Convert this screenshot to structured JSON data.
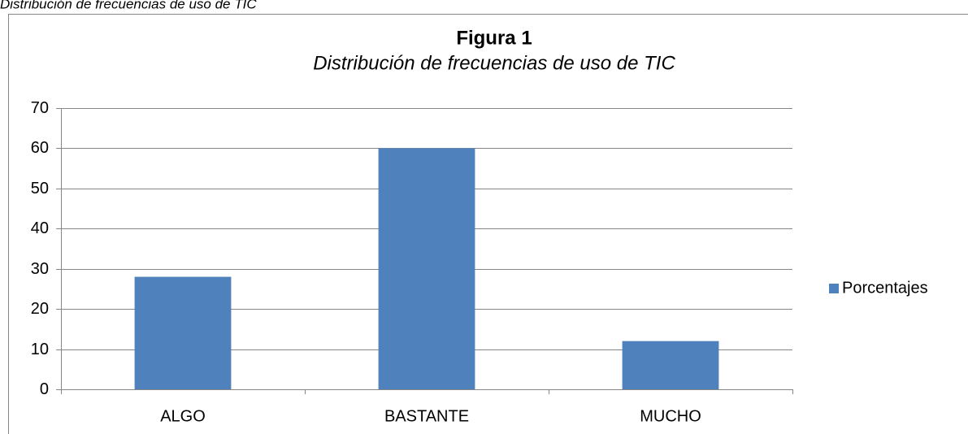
{
  "caption": "Distribución de frecuencias de uso de TIC",
  "chart_data": {
    "type": "bar",
    "title": "Figura 1",
    "subtitle": "Distribución de frecuencias de uso de TIC",
    "categories": [
      "ALGO",
      "BASTANTE",
      "MUCHO"
    ],
    "series": [
      {
        "name": "Porcentajes",
        "color": "#4f81bd",
        "values": [
          28,
          60,
          12
        ]
      }
    ],
    "ylim": [
      0,
      70
    ],
    "yticks": [
      0,
      10,
      20,
      30,
      40,
      50,
      60,
      70
    ],
    "grid": true,
    "legend": "right"
  }
}
